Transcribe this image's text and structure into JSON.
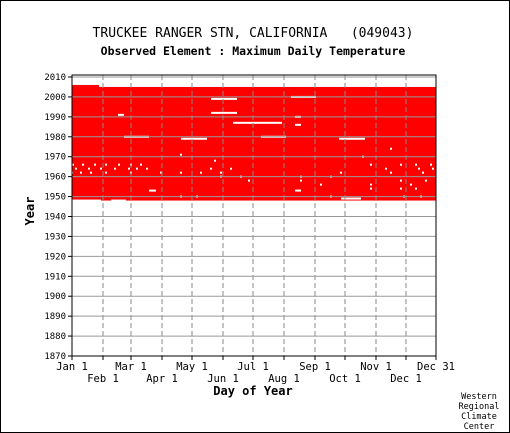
{
  "chart_data": {
    "type": "heatmap",
    "title": "TRUCKEE RANGER STN, CALIFORNIA   (049043)",
    "subtitle": "Observed Element : Maximum Daily Temperature",
    "xlabel": "Day of Year",
    "ylabel": "Year",
    "xlim": [
      1,
      365
    ],
    "ylim": [
      1870,
      2011
    ],
    "fill_color": "#ff0000",
    "grid": true,
    "x_ticks_top_row": [
      {
        "label": "Jan 1",
        "day": 1
      },
      {
        "label": "Mar 1",
        "day": 60
      },
      {
        "label": "May 1",
        "day": 121
      },
      {
        "label": "Jul 1",
        "day": 182
      },
      {
        "label": "Sep 1",
        "day": 244
      },
      {
        "label": "Nov 1",
        "day": 305
      },
      {
        "label": "Dec 31",
        "day": 365
      }
    ],
    "x_ticks_bottom_row": [
      {
        "label": "Feb 1",
        "day": 32
      },
      {
        "label": "Apr 1",
        "day": 91
      },
      {
        "label": "Jun 1",
        "day": 152
      },
      {
        "label": "Aug 1",
        "day": 213
      },
      {
        "label": "Oct 1",
        "day": 274
      },
      {
        "label": "Dec 1",
        "day": 335
      }
    ],
    "y_ticks": [
      1870,
      1880,
      1890,
      1900,
      1910,
      1920,
      1930,
      1940,
      1950,
      1960,
      1970,
      1980,
      1990,
      2000,
      2010
    ],
    "data_blocks": [
      {
        "from_year": 1948,
        "to_year": 2005,
        "from_day": 1,
        "to_day": 365
      },
      {
        "from_year": 2005,
        "to_year": 2006,
        "from_day": 1,
        "to_day": 28
      }
    ],
    "missing_segments": [
      {
        "year": 1999,
        "from_day": 140,
        "to_day": 166
      },
      {
        "year": 2000,
        "from_day": 220,
        "to_day": 245
      },
      {
        "year": 1992,
        "from_day": 140,
        "to_day": 166
      },
      {
        "year": 1991,
        "from_day": 47,
        "to_day": 53
      },
      {
        "year": 1987,
        "from_day": 162,
        "to_day": 211
      },
      {
        "year": 1990,
        "from_day": 224,
        "to_day": 230
      },
      {
        "year": 1986,
        "from_day": 224,
        "to_day": 230
      },
      {
        "year": 1980,
        "from_day": 53,
        "to_day": 78
      },
      {
        "year": 1980,
        "from_day": 190,
        "to_day": 215
      },
      {
        "year": 1979,
        "from_day": 110,
        "to_day": 136
      },
      {
        "year": 1979,
        "from_day": 268,
        "to_day": 294
      },
      {
        "year": 1953,
        "from_day": 78,
        "to_day": 85
      },
      {
        "year": 1953,
        "from_day": 224,
        "to_day": 230
      },
      {
        "year": 1949,
        "from_day": 270,
        "to_day": 290
      },
      {
        "year": 1948,
        "from_day": 1,
        "to_day": 30
      },
      {
        "year": 1948,
        "from_day": 40,
        "to_day": 55
      }
    ],
    "missing_dots": [
      [
        1966,
        2
      ],
      [
        1966,
        12
      ],
      [
        1966,
        24
      ],
      [
        1966,
        35
      ],
      [
        1966,
        48
      ],
      [
        1966,
        60
      ],
      [
        1966,
        70
      ],
      [
        1966,
        300
      ],
      [
        1966,
        330
      ],
      [
        1966,
        345
      ],
      [
        1966,
        360
      ],
      [
        1964,
        5
      ],
      [
        1964,
        18
      ],
      [
        1964,
        30
      ],
      [
        1964,
        44
      ],
      [
        1964,
        58
      ],
      [
        1964,
        66
      ],
      [
        1964,
        76
      ],
      [
        1964,
        140
      ],
      [
        1964,
        160
      ],
      [
        1964,
        315
      ],
      [
        1964,
        348
      ],
      [
        1964,
        362
      ],
      [
        1962,
        1
      ],
      [
        1962,
        10
      ],
      [
        1962,
        20
      ],
      [
        1962,
        35
      ],
      [
        1962,
        60
      ],
      [
        1962,
        90
      ],
      [
        1962,
        110
      ],
      [
        1962,
        130
      ],
      [
        1962,
        150
      ],
      [
        1962,
        270
      ],
      [
        1962,
        320
      ],
      [
        1962,
        352
      ],
      [
        1960,
        150
      ],
      [
        1960,
        170
      ],
      [
        1960,
        230
      ],
      [
        1960,
        260
      ],
      [
        1958,
        178
      ],
      [
        1958,
        230
      ],
      [
        1958,
        330
      ],
      [
        1958,
        355
      ],
      [
        1956,
        250
      ],
      [
        1956,
        300
      ],
      [
        1956,
        340
      ],
      [
        1954,
        300
      ],
      [
        1954,
        330
      ],
      [
        1954,
        345
      ],
      [
        1950,
        110
      ],
      [
        1950,
        126
      ],
      [
        1950,
        260
      ],
      [
        1950,
        333
      ],
      [
        1950,
        350
      ],
      [
        1974,
        320
      ],
      [
        1970,
        292
      ],
      [
        1968,
        144
      ],
      [
        1971,
        110
      ]
    ]
  },
  "footer": {
    "line1": "Western",
    "line2": "Regional",
    "line3": "Climate",
    "line4": "Center"
  }
}
